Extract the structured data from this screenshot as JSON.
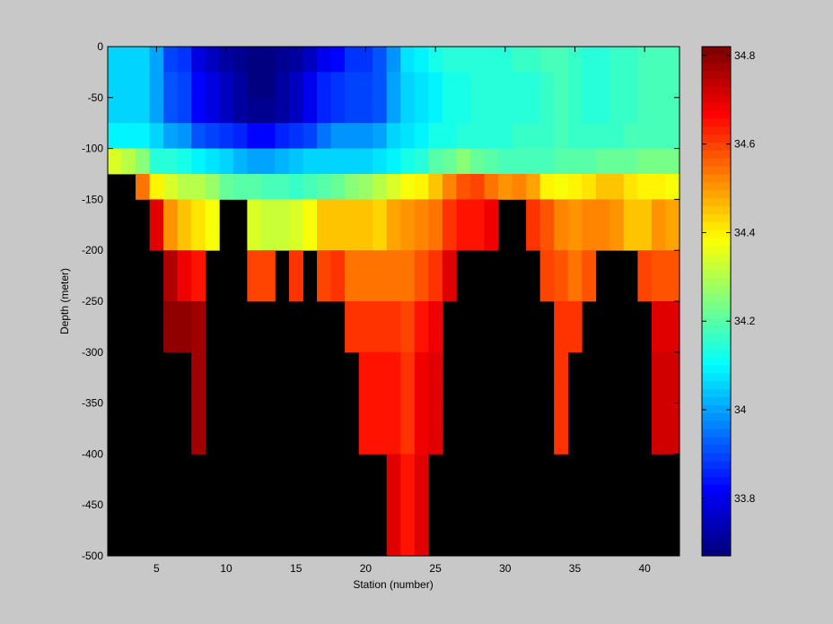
{
  "chart_data": {
    "type": "heatmap",
    "title": "",
    "xlabel": "Station (number)",
    "ylabel": "Depth (meter)",
    "xlim": [
      1,
      42
    ],
    "ylim": [
      -500,
      0
    ],
    "xticks": [
      5,
      10,
      15,
      20,
      25,
      30,
      35,
      40
    ],
    "yticks": [
      0,
      -50,
      -100,
      -150,
      -200,
      -250,
      -300,
      -350,
      -400,
      -450,
      -500
    ],
    "depth_step_m": 25,
    "missing_color": "#000000",
    "colorbar": {
      "range": [
        33.67,
        34.82
      ],
      "ticks": [
        33.8,
        34,
        34.2,
        34.4,
        34.6,
        34.8
      ],
      "colormap": "jet",
      "levels": 64
    },
    "stations": [
      {
        "x": 2,
        "bottom": -125,
        "salinity": [
          34.05,
          34.05,
          34.05,
          34.1,
          34.35
        ]
      },
      {
        "x": 3,
        "bottom": -125,
        "salinity": [
          34.05,
          34.05,
          34.05,
          34.1,
          34.3
        ]
      },
      {
        "x": 4,
        "bottom": -150,
        "salinity": [
          34.05,
          34.05,
          34.05,
          34.1,
          34.25,
          34.55
        ]
      },
      {
        "x": 5,
        "bottom": -200,
        "salinity": [
          34.0,
          34.0,
          34.0,
          34.05,
          34.15,
          34.4,
          34.7,
          34.7
        ]
      },
      {
        "x": 6,
        "bottom": -300,
        "salinity": [
          33.9,
          33.92,
          33.92,
          34.0,
          34.15,
          34.35,
          34.5,
          34.5,
          34.75,
          34.75,
          34.8,
          34.8
        ]
      },
      {
        "x": 7,
        "bottom": -300,
        "salinity": [
          33.88,
          33.9,
          33.9,
          33.98,
          34.13,
          34.3,
          34.45,
          34.45,
          34.68,
          34.68,
          34.8,
          34.8
        ]
      },
      {
        "x": 8,
        "bottom": -400,
        "salinity": [
          33.78,
          33.82,
          33.82,
          33.92,
          34.1,
          34.3,
          34.42,
          34.42,
          34.65,
          34.65,
          34.78,
          34.78,
          34.78,
          34.78,
          34.78,
          34.78
        ]
      },
      {
        "x": 9,
        "bottom": -200,
        "salinity": [
          33.75,
          33.78,
          33.78,
          33.9,
          34.08,
          34.28,
          34.38,
          34.38
        ]
      },
      {
        "x": 10,
        "bottom": -150,
        "salinity": [
          33.72,
          33.75,
          33.75,
          33.88,
          34.05,
          34.22
        ]
      },
      {
        "x": 11,
        "bottom": -150,
        "salinity": [
          33.7,
          33.72,
          33.72,
          33.85,
          34.02,
          34.2
        ]
      },
      {
        "x": 12,
        "bottom": -250,
        "salinity": [
          33.68,
          33.68,
          33.7,
          33.82,
          34.0,
          34.2,
          34.35,
          34.35,
          34.6,
          34.6
        ]
      },
      {
        "x": 13,
        "bottom": -250,
        "salinity": [
          33.68,
          33.68,
          33.7,
          33.82,
          34.0,
          34.18,
          34.33,
          34.33,
          34.6,
          34.6
        ]
      },
      {
        "x": 14,
        "bottom": -200,
        "salinity": [
          33.7,
          33.72,
          33.72,
          33.85,
          34.02,
          34.18,
          34.33,
          34.33
        ]
      },
      {
        "x": 15,
        "bottom": -250,
        "salinity": [
          33.72,
          33.75,
          33.75,
          33.88,
          34.03,
          34.17,
          34.35,
          34.35,
          34.62,
          34.62
        ]
      },
      {
        "x": 16,
        "bottom": -200,
        "salinity": [
          33.75,
          33.8,
          33.8,
          33.9,
          34.05,
          34.18,
          34.38,
          34.38
        ]
      },
      {
        "x": 17,
        "bottom": -250,
        "salinity": [
          33.8,
          33.85,
          33.85,
          33.95,
          34.05,
          34.2,
          34.45,
          34.45,
          34.6,
          34.6
        ]
      },
      {
        "x": 18,
        "bottom": -250,
        "salinity": [
          33.82,
          33.88,
          33.88,
          33.98,
          34.06,
          34.22,
          34.45,
          34.45,
          34.62,
          34.62
        ]
      },
      {
        "x": 19,
        "bottom": -300,
        "salinity": [
          33.88,
          33.9,
          33.9,
          33.98,
          34.06,
          34.25,
          34.45,
          34.45,
          34.55,
          34.55,
          34.62,
          34.62
        ]
      },
      {
        "x": 20,
        "bottom": -400,
        "salinity": [
          33.88,
          33.9,
          33.9,
          33.98,
          34.06,
          34.28,
          34.45,
          34.45,
          34.55,
          34.55,
          34.62,
          34.62,
          34.65,
          34.65,
          34.65,
          34.65
        ]
      },
      {
        "x": 21,
        "bottom": -400,
        "salinity": [
          33.92,
          33.92,
          33.92,
          34.0,
          34.08,
          34.3,
          34.43,
          34.43,
          34.55,
          34.55,
          34.62,
          34.62,
          34.65,
          34.65,
          34.65,
          34.65
        ]
      },
      {
        "x": 22,
        "bottom": -500,
        "salinity": [
          33.98,
          34.0,
          34.0,
          34.05,
          34.1,
          34.35,
          34.48,
          34.48,
          34.55,
          34.55,
          34.62,
          34.62,
          34.65,
          34.65,
          34.65,
          34.65,
          34.7,
          34.7,
          34.7,
          34.7
        ]
      },
      {
        "x": 23,
        "bottom": -500,
        "salinity": [
          34.08,
          34.05,
          34.05,
          34.08,
          34.12,
          34.38,
          34.5,
          34.5,
          34.55,
          34.55,
          34.6,
          34.6,
          34.62,
          34.62,
          34.62,
          34.62,
          34.65,
          34.65,
          34.65,
          34.65
        ]
      },
      {
        "x": 24,
        "bottom": -500,
        "salinity": [
          34.1,
          34.07,
          34.07,
          34.1,
          34.15,
          34.4,
          34.52,
          34.52,
          34.58,
          34.58,
          34.65,
          34.65,
          34.68,
          34.68,
          34.68,
          34.68,
          34.7,
          34.7,
          34.7,
          34.7
        ]
      },
      {
        "x": 25,
        "bottom": -400,
        "salinity": [
          34.12,
          34.1,
          34.1,
          34.12,
          34.2,
          34.45,
          34.55,
          34.55,
          34.62,
          34.62,
          34.68,
          34.68,
          34.7,
          34.7,
          34.7,
          34.7
        ]
      },
      {
        "x": 26,
        "bottom": -250,
        "salinity": [
          34.15,
          34.12,
          34.12,
          34.13,
          34.22,
          34.52,
          34.62,
          34.62,
          34.7,
          34.7
        ]
      },
      {
        "x": 27,
        "bottom": -200,
        "salinity": [
          34.15,
          34.13,
          34.13,
          34.14,
          34.25,
          34.58,
          34.65,
          34.65
        ]
      },
      {
        "x": 28,
        "bottom": -200,
        "salinity": [
          34.15,
          34.14,
          34.14,
          34.15,
          34.22,
          34.6,
          34.65,
          34.65
        ]
      },
      {
        "x": 29,
        "bottom": -200,
        "salinity": [
          34.15,
          34.14,
          34.14,
          34.15,
          34.2,
          34.55,
          34.68,
          34.68
        ]
      },
      {
        "x": 30,
        "bottom": -150,
        "salinity": [
          34.15,
          34.14,
          34.14,
          34.15,
          34.18,
          34.5
        ]
      },
      {
        "x": 31,
        "bottom": -150,
        "salinity": [
          34.16,
          34.15,
          34.15,
          34.16,
          34.18,
          34.52
        ]
      },
      {
        "x": 32,
        "bottom": -200,
        "salinity": [
          34.16,
          34.15,
          34.15,
          34.16,
          34.18,
          34.48,
          34.62,
          34.62
        ]
      },
      {
        "x": 33,
        "bottom": -250,
        "salinity": [
          34.18,
          34.16,
          34.16,
          34.17,
          34.18,
          34.4,
          34.58,
          34.58,
          34.6,
          34.6
        ]
      },
      {
        "x": 34,
        "bottom": -400,
        "salinity": [
          34.18,
          34.18,
          34.18,
          34.18,
          34.2,
          34.38,
          34.52,
          34.52,
          34.58,
          34.58,
          34.62,
          34.62,
          34.62,
          34.62,
          34.62,
          34.62
        ]
      },
      {
        "x": 35,
        "bottom": -300,
        "salinity": [
          34.16,
          34.16,
          34.16,
          34.16,
          34.2,
          34.4,
          34.5,
          34.5,
          34.55,
          34.55,
          34.62,
          34.62
        ]
      },
      {
        "x": 36,
        "bottom": -250,
        "salinity": [
          34.15,
          34.15,
          34.15,
          34.16,
          34.2,
          34.42,
          34.52,
          34.52,
          34.58,
          34.58
        ]
      },
      {
        "x": 37,
        "bottom": -200,
        "salinity": [
          34.15,
          34.15,
          34.15,
          34.16,
          34.22,
          34.45,
          34.52,
          34.52
        ]
      },
      {
        "x": 38,
        "bottom": -200,
        "salinity": [
          34.16,
          34.16,
          34.16,
          34.17,
          34.22,
          34.45,
          34.5,
          34.5
        ]
      },
      {
        "x": 39,
        "bottom": -200,
        "salinity": [
          34.17,
          34.17,
          34.17,
          34.18,
          34.22,
          34.42,
          34.45,
          34.45
        ]
      },
      {
        "x": 40,
        "bottom": -250,
        "salinity": [
          34.18,
          34.18,
          34.18,
          34.19,
          34.23,
          34.4,
          34.45,
          34.45,
          34.6,
          34.6
        ]
      },
      {
        "x": 41,
        "bottom": -400,
        "salinity": [
          34.18,
          34.18,
          34.18,
          34.19,
          34.23,
          34.4,
          34.5,
          34.5,
          34.58,
          34.58,
          34.7,
          34.7,
          34.73,
          34.73,
          34.73,
          34.73
        ]
      },
      {
        "x": 42,
        "bottom": -400,
        "salinity": [
          34.18,
          34.18,
          34.18,
          34.19,
          34.23,
          34.38,
          34.48,
          34.48,
          34.58,
          34.58,
          34.7,
          34.7,
          34.73,
          34.73,
          34.73,
          34.73
        ]
      }
    ]
  }
}
